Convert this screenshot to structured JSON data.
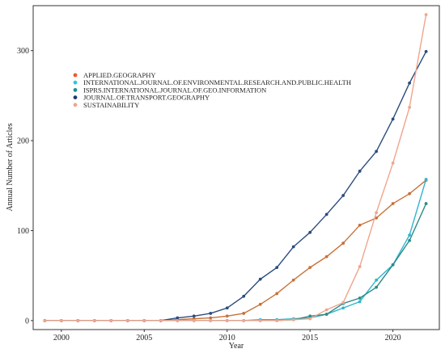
{
  "chart_data": {
    "type": "line",
    "xlabel": "Year",
    "ylabel": "Annual Number of Articles",
    "xlim": [
      1998.3,
      2022.8
    ],
    "ylim": [
      -10,
      350
    ],
    "x_ticks": [
      2000,
      2005,
      2010,
      2015,
      2020
    ],
    "y_ticks": [
      0,
      100,
      200,
      300
    ],
    "grid": false,
    "legend_position": "top-left",
    "x": [
      1999,
      2000,
      2001,
      2002,
      2003,
      2004,
      2005,
      2006,
      2007,
      2008,
      2009,
      2010,
      2011,
      2012,
      2013,
      2014,
      2015,
      2016,
      2017,
      2018,
      2019,
      2020,
      2021,
      2022
    ],
    "series": [
      {
        "name": "APPLIED.GEOGRAPHY",
        "color": "#c7723a",
        "legend_color": "#f0582a",
        "values": [
          0,
          0,
          0,
          0,
          0,
          0,
          0,
          0,
          1,
          2,
          3,
          5,
          8,
          18,
          30,
          45,
          59,
          71,
          86,
          106,
          114,
          130,
          141,
          156
        ]
      },
      {
        "name": "INTERNATIONAL.JOURNAL.OF.ENVIRONMENTAL.RESEARCH.AND.PUBLIC.HEALTH",
        "color": "#2fb4cf",
        "legend_color": "#2dc6e0",
        "values": [
          0,
          0,
          0,
          0,
          0,
          0,
          0,
          0,
          0,
          0,
          0,
          0,
          0,
          1,
          1,
          2,
          3,
          7,
          14,
          21,
          45,
          62,
          95,
          157
        ]
      },
      {
        "name": "ISPRS.INTERNATIONAL.JOURNAL.OF.GEO.INFORMATION",
        "color": "#2d8a8a",
        "legend_color": "#1f8f94",
        "values": [
          0,
          0,
          0,
          0,
          0,
          0,
          0,
          0,
          0,
          0,
          0,
          0,
          0,
          0,
          0,
          1,
          5,
          7,
          19,
          25,
          37,
          62,
          89,
          130
        ]
      },
      {
        "name": "JOURNAL.OF.TRANSPORT.GEOGRAPHY",
        "color": "#2b4c7e",
        "legend_color": "#1d3a6e",
        "values": [
          0,
          0,
          0,
          0,
          0,
          0,
          0,
          0,
          3,
          5,
          8,
          14,
          27,
          46,
          59,
          82,
          98,
          118,
          139,
          166,
          188,
          224,
          264,
          299
        ]
      },
      {
        "name": "SUSTAINABILITY",
        "color": "#f0a58c",
        "legend_color": "#f4a385",
        "values": [
          0,
          0,
          0,
          0,
          0,
          0,
          0,
          0,
          0,
          0,
          0,
          0,
          0,
          0,
          0,
          1,
          2,
          12,
          20,
          60,
          120,
          175,
          237,
          340
        ]
      }
    ]
  }
}
